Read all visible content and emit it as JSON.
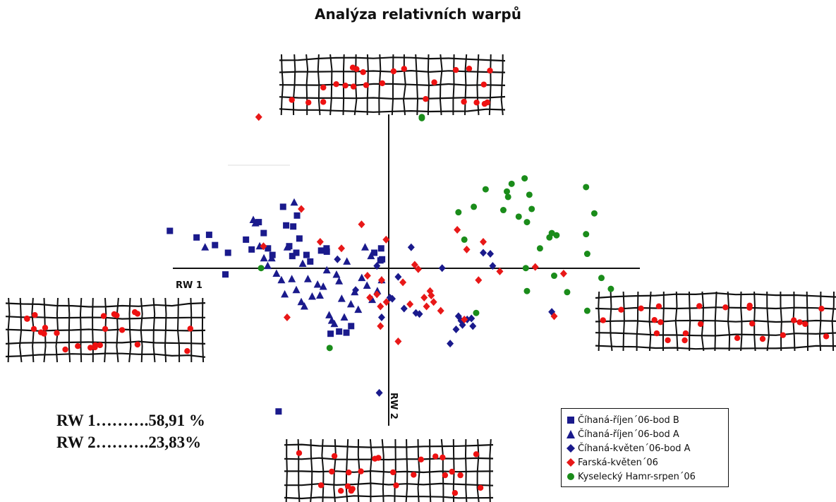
{
  "chart_data": {
    "type": "scatter",
    "title": "Analýza relativních warpů",
    "xlabel": "RW 1",
    "ylabel": "RW 2",
    "xlim": [
      -0.1,
      0.12
    ],
    "ylim": [
      -0.08,
      0.07
    ],
    "grid": false,
    "legend_position": "bottom-right",
    "series": [
      {
        "name": "Číhaná-říjen´06-bod B",
        "marker": "square",
        "color": "#1a1a8c",
        "points": [
          [
            -0.0926,
            0.0171
          ],
          [
            -0.0813,
            0.0141
          ],
          [
            -0.076,
            0.0153
          ],
          [
            -0.0735,
            0.0106
          ],
          [
            -0.068,
            0.0071
          ],
          [
            -0.0691,
            -0.0028
          ],
          [
            -0.0604,
            0.0131
          ],
          [
            -0.058,
            0.0086
          ],
          [
            -0.055,
            0.0211
          ],
          [
            -0.0529,
            0.0161
          ],
          [
            -0.0511,
            0.0091
          ],
          [
            -0.0492,
            0.0061
          ],
          [
            -0.0447,
            0.0281
          ],
          [
            -0.0434,
            0.0196
          ],
          [
            -0.0421,
            0.0101
          ],
          [
            -0.0408,
            0.0056
          ],
          [
            -0.0404,
            0.0191
          ],
          [
            -0.0391,
            0.0071
          ],
          [
            -0.0388,
            0.0241
          ],
          [
            -0.0378,
            0.0136
          ],
          [
            -0.0348,
            0.0061
          ],
          [
            -0.0332,
            0.0031
          ],
          [
            -0.0286,
            0.0081
          ],
          [
            -0.0262,
            0.0076
          ],
          [
            -0.0263,
            0.0091
          ],
          [
            -0.0246,
            -0.0299
          ],
          [
            -0.021,
            -0.0289
          ],
          [
            -0.0179,
            -0.0294
          ],
          [
            -0.0159,
            -0.0264
          ],
          [
            -0.0061,
            0.0071
          ],
          [
            -0.0035,
            0.0036
          ],
          [
            -0.0028,
            0.0041
          ],
          [
            -0.0032,
            0.0091
          ],
          [
            -0.0466,
            -0.0654
          ]
        ]
      },
      {
        "name": "Číhaná-říjen´06-bod A",
        "marker": "triangle",
        "color": "#1a1a8c",
        "points": [
          [
            -0.0777,
            0.0096
          ],
          [
            -0.0573,
            0.0221
          ],
          [
            -0.0564,
            0.0206
          ],
          [
            -0.0546,
            0.0101
          ],
          [
            -0.0528,
            0.0046
          ],
          [
            -0.0512,
            0.0011
          ],
          [
            -0.0495,
            0.0046
          ],
          [
            -0.0475,
            -0.0024
          ],
          [
            -0.0454,
            -0.0054
          ],
          [
            -0.044,
            -0.0119
          ],
          [
            -0.0429,
            0.0096
          ],
          [
            -0.041,
            -0.0049
          ],
          [
            -0.04,
            0.0301
          ],
          [
            -0.0391,
            -0.0099
          ],
          [
            -0.037,
            -0.0154
          ],
          [
            -0.0364,
            0.0021
          ],
          [
            -0.0357,
            -0.0174
          ],
          [
            -0.0342,
            -0.0049
          ],
          [
            -0.0324,
            -0.0129
          ],
          [
            -0.0301,
            -0.0074
          ],
          [
            -0.0291,
            -0.0124
          ],
          [
            -0.0277,
            -0.0084
          ],
          [
            -0.0262,
            -0.0009
          ],
          [
            -0.0252,
            -0.0214
          ],
          [
            -0.0241,
            -0.0239
          ],
          [
            -0.023,
            -0.0254
          ],
          [
            -0.0221,
            -0.0029
          ],
          [
            -0.021,
            -0.0059
          ],
          [
            -0.0199,
            -0.0139
          ],
          [
            -0.0188,
            -0.0224
          ],
          [
            -0.0177,
            0.0031
          ],
          [
            -0.016,
            -0.0164
          ],
          [
            -0.0144,
            -0.0109
          ],
          [
            -0.0129,
            -0.0189
          ],
          [
            -0.0114,
            -0.0044
          ],
          [
            -0.01,
            0.0096
          ],
          [
            -0.0092,
            -0.0079
          ],
          [
            -0.0075,
            0.0056
          ],
          [
            -0.007,
            -0.0144
          ],
          [
            -0.0048,
            -0.0104
          ],
          [
            -0.003,
            -0.0054
          ]
        ]
      },
      {
        "name": "Číhaná-květen´06-bod A",
        "marker": "diamond",
        "color": "#1a1a8c",
        "points": [
          [
            -0.0217,
            0.0041
          ],
          [
            -0.014,
            -0.0099
          ],
          [
            -0.005,
            0.0011
          ],
          [
            -0.003,
            -0.0224
          ],
          [
            0.0005,
            -0.0134
          ],
          [
            0.0015,
            -0.0139
          ],
          [
            0.004,
            -0.0039
          ],
          [
            0.0065,
            -0.0184
          ],
          [
            0.0095,
            0.0096
          ],
          [
            0.0115,
            -0.0204
          ],
          [
            0.013,
            -0.0209
          ],
          [
            0.0226,
            0.0001
          ],
          [
            0.026,
            -0.0344
          ],
          [
            0.0285,
            -0.0279
          ],
          [
            0.0295,
            -0.0219
          ],
          [
            0.0306,
            -0.0239
          ],
          [
            0.0312,
            -0.0259
          ],
          [
            0.0332,
            -0.0234
          ],
          [
            0.035,
            -0.0229
          ],
          [
            0.0356,
            -0.0264
          ],
          [
            0.04,
            0.0071
          ],
          [
            0.043,
            0.0066
          ],
          [
            0.044,
            0.0011
          ],
          [
            0.069,
            -0.0199
          ],
          [
            -0.004,
            -0.0569
          ]
        ]
      },
      {
        "name": "Farská-květen´06",
        "marker": "diamond",
        "color": "#e81818",
        "points": [
          [
            -0.055,
            0.0691
          ],
          [
            -0.053,
            0.0101
          ],
          [
            -0.043,
            -0.0224
          ],
          [
            -0.037,
            0.0271
          ],
          [
            -0.029,
            0.0121
          ],
          [
            -0.02,
            0.0091
          ],
          [
            -0.0115,
            0.0201
          ],
          [
            -0.009,
            -0.0034
          ],
          [
            -0.008,
            -0.0134
          ],
          [
            -0.005,
            -0.0119
          ],
          [
            -0.0011,
            0.0131
          ],
          [
            -0.003,
            -0.0054
          ],
          [
            -0.0035,
            -0.0174
          ],
          [
            -0.0035,
            -0.0264
          ],
          [
            -0.001,
            -0.0154
          ],
          [
            0.004,
            -0.0334
          ],
          [
            0.006,
            -0.0064
          ],
          [
            0.009,
            -0.0164
          ],
          [
            0.011,
            0.0016
          ],
          [
            0.0125,
            -0.0004
          ],
          [
            0.015,
            -0.0134
          ],
          [
            0.016,
            -0.0174
          ],
          [
            0.0175,
            -0.0104
          ],
          [
            0.018,
            -0.0124
          ],
          [
            0.019,
            -0.0154
          ],
          [
            0.022,
            -0.0194
          ],
          [
            0.032,
            -0.0234
          ],
          [
            0.029,
            0.0176
          ],
          [
            0.033,
            0.0086
          ],
          [
            0.038,
            -0.0054
          ],
          [
            0.04,
            0.0121
          ],
          [
            0.047,
            -0.0014
          ],
          [
            0.062,
            0.0006
          ],
          [
            0.074,
            -0.0024
          ],
          [
            0.07,
            -0.0219
          ]
        ]
      },
      {
        "name": "Kyselecký Hamr-srpen´06",
        "marker": "circle",
        "color": "#1a8c1a",
        "points": [
          [
            -0.054,
            0.0001
          ],
          [
            -0.025,
            -0.0364
          ],
          [
            0.014,
            0.0691
          ],
          [
            0.014,
            0.0686
          ],
          [
            0.0295,
            0.0256
          ],
          [
            0.032,
            0.0131
          ],
          [
            0.036,
            0.0281
          ],
          [
            0.037,
            -0.0204
          ],
          [
            0.041,
            0.0361
          ],
          [
            0.0485,
            0.0266
          ],
          [
            0.0505,
            0.0326
          ],
          [
            0.05,
            0.0351
          ],
          [
            0.052,
            0.0386
          ],
          [
            0.055,
            0.0236
          ],
          [
            0.0575,
            0.0411
          ],
          [
            0.0585,
            0.0211
          ],
          [
            0.0595,
            0.0336
          ],
          [
            0.0605,
            0.0271
          ],
          [
            0.058,
            0.0001
          ],
          [
            0.0585,
            -0.0104
          ],
          [
            0.064,
            0.0091
          ],
          [
            0.068,
            0.0141
          ],
          [
            0.069,
            0.0161
          ],
          [
            0.071,
            0.0151
          ],
          [
            0.07,
            -0.0034
          ],
          [
            0.0755,
            -0.0109
          ],
          [
            0.0835,
            0.0371
          ],
          [
            0.0835,
            0.0156
          ],
          [
            0.084,
            0.0066
          ],
          [
            0.084,
            -0.0194
          ],
          [
            0.087,
            0.0251
          ],
          [
            0.09,
            -0.0044
          ],
          [
            0.094,
            -0.0094
          ]
        ]
      }
    ]
  },
  "stats": {
    "rw1": "RW 1……….58,91 %",
    "rw2": "RW 2……….23,83%"
  },
  "colors": {
    "grid_line": "#111111",
    "landmark": "#ee1111",
    "square_blue": "#1a1a8c",
    "red": "#e81818",
    "green": "#1a8c1a"
  }
}
